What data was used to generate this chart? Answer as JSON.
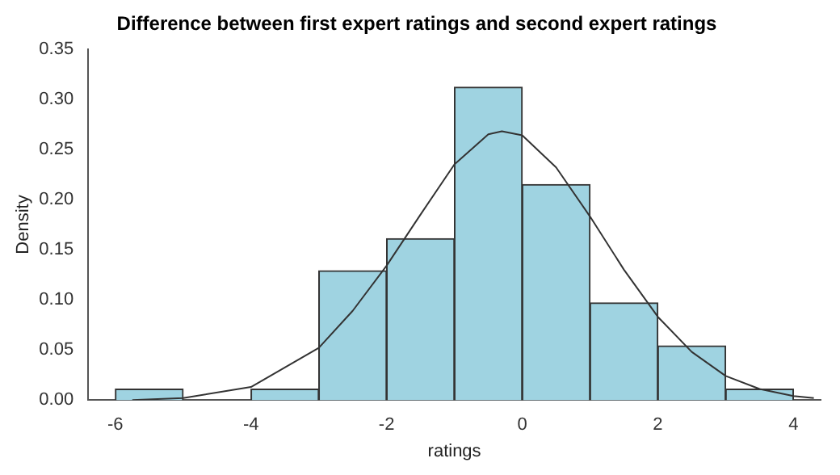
{
  "chart_data": {
    "type": "histogram",
    "title": "Difference between first expert ratings and second expert ratings",
    "xlabel": "ratings",
    "ylabel": "Density",
    "bins": [
      -6,
      -5,
      -4,
      -3,
      -2,
      -1,
      0,
      1,
      2,
      3,
      4
    ],
    "values": [
      0.011,
      0,
      0.011,
      0.129,
      0.161,
      0.312,
      0.215,
      0.097,
      0.054,
      0.011
    ],
    "color": "#9fd3e1",
    "series": [
      {
        "type": "line",
        "color": "#333333",
        "x": [
          -5.75,
          -5,
          -4,
          -3,
          -2.5,
          -2,
          -1.5,
          -1,
          -0.5,
          -0.3,
          0,
          0.5,
          1,
          1.5,
          2,
          2.5,
          3,
          3.5,
          4,
          4.3
        ],
        "values": [
          0,
          0.002,
          0.013,
          0.052,
          0.089,
          0.134,
          0.185,
          0.235,
          0.265,
          0.268,
          0.264,
          0.232,
          0.183,
          0.13,
          0.083,
          0.048,
          0.024,
          0.011,
          0.004,
          0.002
        ]
      }
    ],
    "xlim": [
      -6.4,
      4.4
    ],
    "xticks": [
      -6,
      -4,
      -2,
      0,
      2,
      4
    ],
    "ylim": [
      0,
      0.35
    ],
    "yticks": [
      {
        "value": 0,
        "label": "0.00"
      },
      {
        "value": 0.05,
        "label": "0.05"
      },
      {
        "value": 0.1,
        "label": "0.10"
      },
      {
        "value": 0.15,
        "label": "0.15"
      },
      {
        "value": 0.2,
        "label": "0.20"
      },
      {
        "value": 0.25,
        "label": "0.25"
      },
      {
        "value": 0.3,
        "label": "0.30"
      },
      {
        "value": 0.35,
        "label": "0.35"
      }
    ],
    "grid": false,
    "legend": false
  }
}
